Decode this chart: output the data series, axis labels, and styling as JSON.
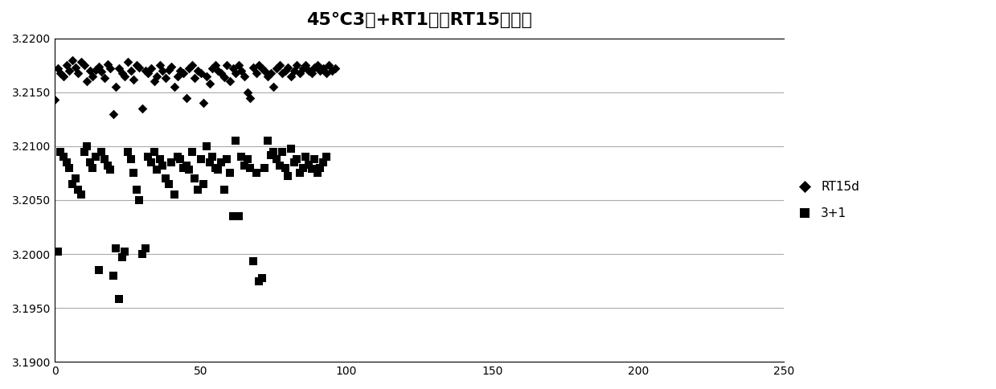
{
  "title": "45°C3天+RT1天与RT15天对比",
  "title_prefix": "45",
  "title_degree": "℃",
  "title_suffix": "3天+RT1天与RT15天对比",
  "xlim": [
    0,
    250
  ],
  "ylim": [
    3.19,
    3.22
  ],
  "yticks": [
    3.19,
    3.195,
    3.2,
    3.205,
    3.21,
    3.215,
    3.22
  ],
  "xticks": [
    0,
    50,
    100,
    150,
    200,
    250
  ],
  "legend_rt15d": "RT15d",
  "legend_31": "3+1",
  "rt15d_x": [
    0,
    1,
    2,
    3,
    4,
    5,
    6,
    7,
    8,
    9,
    10,
    11,
    12,
    13,
    14,
    15,
    16,
    17,
    18,
    19,
    20,
    21,
    22,
    23,
    24,
    25,
    26,
    27,
    28,
    29,
    30,
    31,
    32,
    33,
    34,
    35,
    36,
    37,
    38,
    39,
    40,
    41,
    42,
    43,
    44,
    45,
    46,
    47,
    48,
    49,
    50,
    51,
    52,
    53,
    54,
    55,
    56,
    57,
    58,
    59,
    60,
    61,
    62,
    63,
    64,
    65,
    66,
    67,
    68,
    69,
    70,
    71,
    72,
    73,
    74,
    75,
    76,
    77,
    78,
    79,
    80,
    81,
    82,
    83,
    84,
    85,
    86,
    87,
    88,
    89,
    90,
    91,
    92,
    93,
    94,
    95,
    96
  ],
  "rt15d_y": [
    3.2143,
    3.2172,
    3.2168,
    3.2165,
    3.2175,
    3.217,
    3.218,
    3.2173,
    3.2168,
    3.2178,
    3.2175,
    3.216,
    3.217,
    3.2165,
    3.2171,
    3.2174,
    3.2169,
    3.2163,
    3.2176,
    3.2172,
    3.213,
    3.2155,
    3.2172,
    3.2168,
    3.2165,
    3.2178,
    3.217,
    3.2162,
    3.2175,
    3.2173,
    3.2135,
    3.217,
    3.2168,
    3.2172,
    3.216,
    3.2165,
    3.2175,
    3.217,
    3.2163,
    3.2171,
    3.2174,
    3.2155,
    3.2165,
    3.217,
    3.2168,
    3.2145,
    3.2172,
    3.2175,
    3.2163,
    3.217,
    3.2168,
    3.214,
    3.2165,
    3.2158,
    3.2172,
    3.2175,
    3.217,
    3.2168,
    3.2164,
    3.2175,
    3.216,
    3.2172,
    3.2168,
    3.2175,
    3.217,
    3.2165,
    3.215,
    3.2145,
    3.2173,
    3.2168,
    3.2175,
    3.2172,
    3.217,
    3.2165,
    3.2168,
    3.2155,
    3.2172,
    3.2175,
    3.2168,
    3.217,
    3.2173,
    3.2165,
    3.217,
    3.2175,
    3.2168,
    3.2172,
    3.2175,
    3.217,
    3.2168,
    3.2173,
    3.2175,
    3.217,
    3.2172,
    3.2168,
    3.2175,
    3.217,
    3.2172
  ],
  "s31_x": [
    1,
    2,
    3,
    4,
    5,
    6,
    7,
    8,
    9,
    10,
    11,
    12,
    13,
    14,
    15,
    16,
    17,
    18,
    19,
    20,
    21,
    22,
    23,
    24,
    25,
    26,
    27,
    28,
    29,
    30,
    31,
    32,
    33,
    34,
    35,
    36,
    37,
    38,
    39,
    40,
    41,
    42,
    43,
    44,
    45,
    46,
    47,
    48,
    49,
    50,
    51,
    52,
    53,
    54,
    55,
    56,
    57,
    58,
    59,
    60,
    61,
    62,
    63,
    64,
    65,
    66,
    67,
    68,
    69,
    70,
    71,
    72,
    73,
    74,
    75,
    76,
    77,
    78,
    79,
    80,
    81,
    82,
    83,
    84,
    85,
    86,
    87,
    88,
    89,
    90,
    91,
    92,
    93
  ],
  "s31_y": [
    3.2002,
    3.2095,
    3.209,
    3.2085,
    3.208,
    3.2065,
    3.207,
    3.206,
    3.2055,
    3.2095,
    3.21,
    3.2085,
    3.208,
    3.209,
    3.1985,
    3.2095,
    3.2088,
    3.2082,
    3.2078,
    3.198,
    3.2005,
    3.1958,
    3.1997,
    3.2002,
    3.2095,
    3.2088,
    3.2075,
    3.206,
    3.205,
    3.2,
    3.2005,
    3.209,
    3.2085,
    3.2095,
    3.2078,
    3.2088,
    3.2082,
    3.207,
    3.2065,
    3.2085,
    3.2055,
    3.209,
    3.2088,
    3.208,
    3.2082,
    3.2078,
    3.2095,
    3.207,
    3.206,
    3.2088,
    3.2065,
    3.21,
    3.2085,
    3.209,
    3.208,
    3.2078,
    3.2085,
    3.206,
    3.2088,
    3.2075,
    3.2035,
    3.2105,
    3.2035,
    3.209,
    3.2082,
    3.2088,
    3.208,
    3.1993,
    3.2075,
    3.1975,
    3.1978,
    3.208,
    3.2105,
    3.2092,
    3.2095,
    3.2088,
    3.2082,
    3.2095,
    3.208,
    3.2072,
    3.2098,
    3.2085,
    3.2088,
    3.2075,
    3.208,
    3.209,
    3.2083,
    3.2079,
    3.2088,
    3.2075,
    3.208,
    3.2085,
    3.209
  ]
}
